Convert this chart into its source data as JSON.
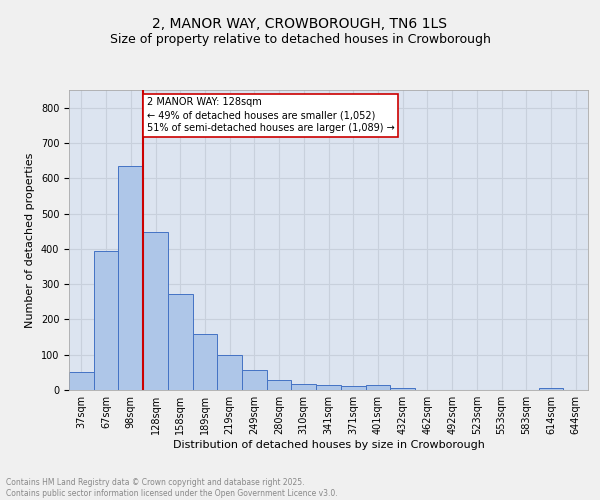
{
  "title_line1": "2, MANOR WAY, CROWBOROUGH, TN6 1LS",
  "title_line2": "Size of property relative to detached houses in Crowborough",
  "xlabel": "Distribution of detached houses by size in Crowborough",
  "ylabel": "Number of detached properties",
  "categories": [
    "37sqm",
    "67sqm",
    "98sqm",
    "128sqm",
    "158sqm",
    "189sqm",
    "219sqm",
    "249sqm",
    "280sqm",
    "310sqm",
    "341sqm",
    "371sqm",
    "401sqm",
    "432sqm",
    "462sqm",
    "492sqm",
    "523sqm",
    "553sqm",
    "583sqm",
    "614sqm",
    "644sqm"
  ],
  "values": [
    50,
    393,
    635,
    447,
    272,
    160,
    100,
    57,
    28,
    18,
    13,
    10,
    14,
    6,
    0,
    0,
    0,
    0,
    0,
    5,
    0
  ],
  "bar_color": "#aec6e8",
  "bar_edge_color": "#4472c4",
  "vline_color": "#cc0000",
  "annotation_text": "2 MANOR WAY: 128sqm\n← 49% of detached houses are smaller (1,052)\n51% of semi-detached houses are larger (1,089) →",
  "annotation_box_color": "#ffffff",
  "annotation_box_edge": "#cc0000",
  "grid_color": "#c8d0dc",
  "background_color": "#dce4f0",
  "fig_background": "#f0f0f0",
  "ylim": [
    0,
    850
  ],
  "yticks": [
    0,
    100,
    200,
    300,
    400,
    500,
    600,
    700,
    800
  ],
  "footer_text": "Contains HM Land Registry data © Crown copyright and database right 2025.\nContains public sector information licensed under the Open Government Licence v3.0.",
  "footer_color": "#888888",
  "title1_fontsize": 10,
  "title2_fontsize": 9,
  "axis_label_fontsize": 8,
  "tick_fontsize": 7,
  "annotation_fontsize": 7
}
